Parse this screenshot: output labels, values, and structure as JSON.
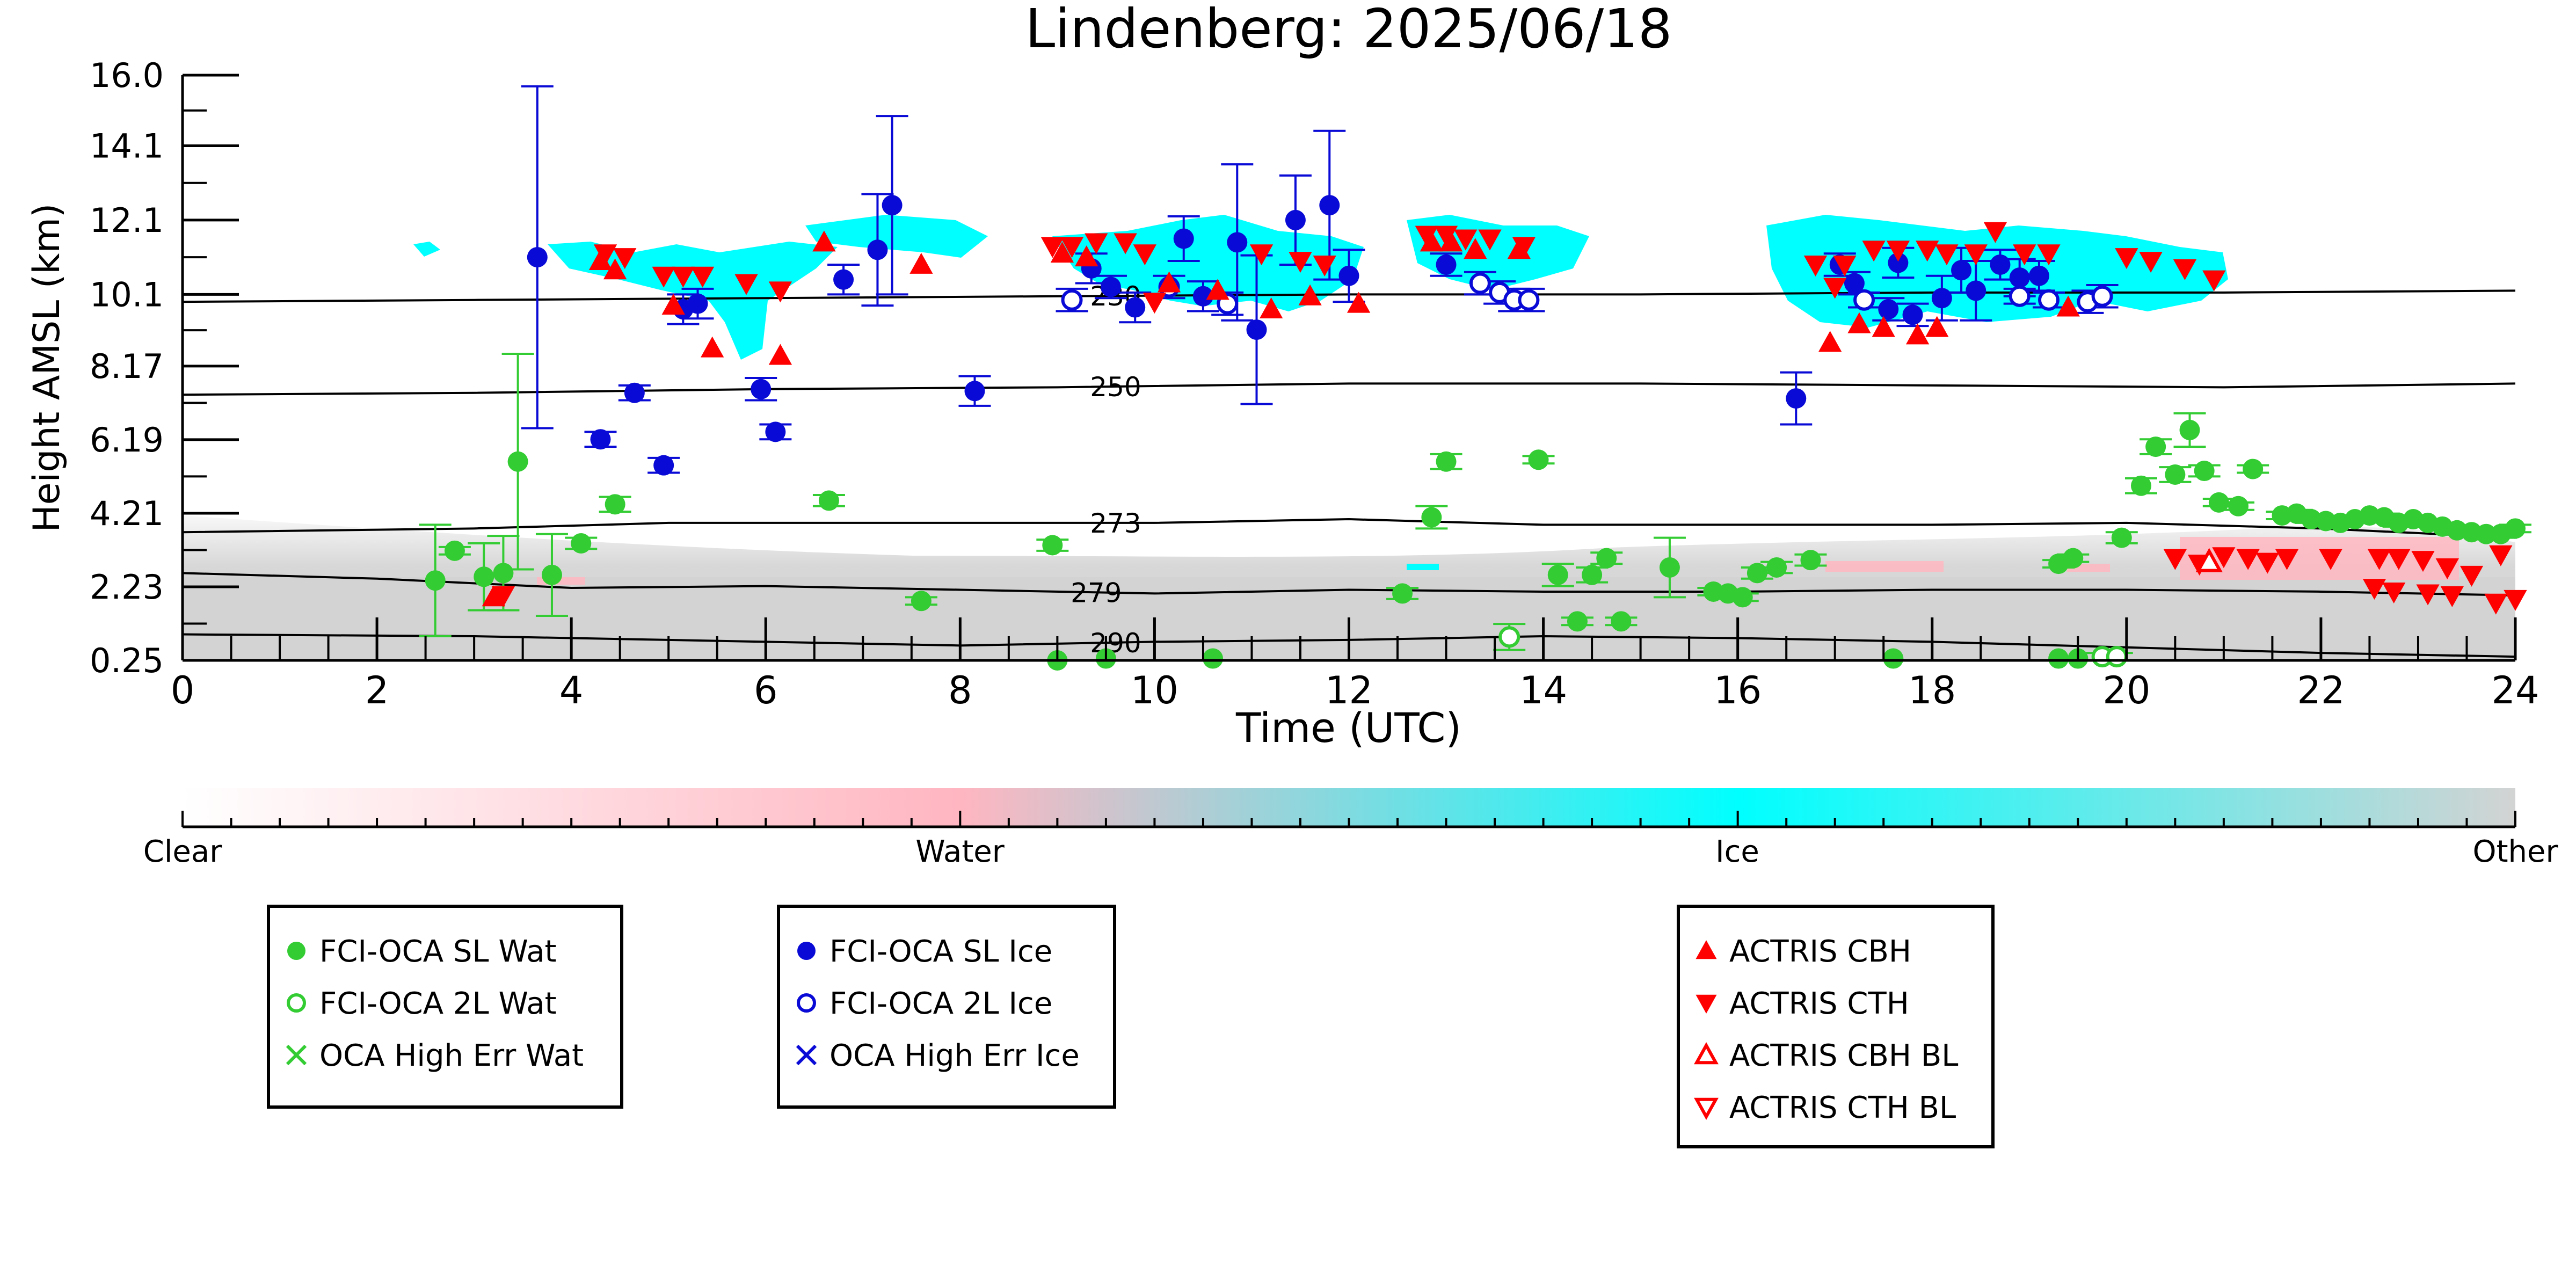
{
  "chart_data": {
    "type": "scatter",
    "title": "Lindenberg: 2025/06/18",
    "xlabel": "Time (UTC)",
    "ylabel": "Height AMSL (km)",
    "xlim": [
      0,
      24
    ],
    "ylim": [
      0.25,
      16.0
    ],
    "x_ticks": [
      "0",
      "2",
      "4",
      "6",
      "8",
      "10",
      "12",
      "14",
      "16",
      "18",
      "20",
      "22",
      "24"
    ],
    "y_ticks": [
      "0.25",
      "2.23",
      "4.21",
      "6.19",
      "8.17",
      "10.1",
      "12.1",
      "14.1",
      "16.0"
    ],
    "y_tick_values": [
      0.25,
      2.23,
      4.21,
      6.19,
      8.17,
      10.1,
      12.1,
      14.1,
      16.0
    ],
    "grid": false,
    "contours": [
      {
        "label": "230",
        "label_x": 9.6,
        "points": [
          [
            0,
            9.9
          ],
          [
            3,
            9.95
          ],
          [
            6,
            10.0
          ],
          [
            9,
            10.05
          ],
          [
            12,
            10.1
          ],
          [
            15,
            10.1
          ],
          [
            18,
            10.15
          ],
          [
            21,
            10.15
          ],
          [
            24,
            10.2
          ]
        ]
      },
      {
        "label": "250",
        "label_x": 9.6,
        "points": [
          [
            0,
            7.4
          ],
          [
            3,
            7.45
          ],
          [
            6,
            7.55
          ],
          [
            9,
            7.6
          ],
          [
            12,
            7.7
          ],
          [
            15,
            7.7
          ],
          [
            18,
            7.65
          ],
          [
            21,
            7.6
          ],
          [
            24,
            7.7
          ]
        ]
      },
      {
        "label": "273",
        "label_x": 9.6,
        "points": [
          [
            0,
            3.7
          ],
          [
            3,
            3.8
          ],
          [
            5,
            3.95
          ],
          [
            8,
            3.95
          ],
          [
            10,
            3.95
          ],
          [
            12,
            4.05
          ],
          [
            14,
            3.9
          ],
          [
            16,
            3.9
          ],
          [
            18,
            3.9
          ],
          [
            20,
            3.95
          ],
          [
            22,
            3.8
          ],
          [
            24,
            3.55
          ]
        ]
      },
      {
        "label": "279",
        "label_x": 9.4,
        "points": [
          [
            0,
            2.6
          ],
          [
            2,
            2.45
          ],
          [
            4,
            2.2
          ],
          [
            6,
            2.25
          ],
          [
            8,
            2.15
          ],
          [
            10,
            2.05
          ],
          [
            12,
            2.15
          ],
          [
            14,
            2.1
          ],
          [
            16,
            2.1
          ],
          [
            18,
            2.15
          ],
          [
            20,
            2.15
          ],
          [
            22,
            2.1
          ],
          [
            24,
            2.0
          ]
        ]
      },
      {
        "label": "290",
        "label_x": 9.6,
        "points": [
          [
            0,
            0.95
          ],
          [
            3,
            0.9
          ],
          [
            6,
            0.75
          ],
          [
            8,
            0.65
          ],
          [
            10,
            0.75
          ],
          [
            12,
            0.8
          ],
          [
            14,
            0.9
          ],
          [
            16,
            0.85
          ],
          [
            18,
            0.75
          ],
          [
            20,
            0.6
          ],
          [
            22,
            0.45
          ],
          [
            24,
            0.35
          ]
        ]
      }
    ],
    "colorbar": {
      "labels": [
        "Clear",
        "Water",
        "Ice",
        "Other"
      ],
      "colors": [
        "#ffffff",
        "#ffb6c1",
        "#00ffff",
        "#d3d3d3"
      ]
    },
    "series": [
      {
        "name": "FCI-OCA SL Wat",
        "marker": "filled-circle",
        "color": "#33cc33",
        "points": [
          [
            2.6,
            2.4,
            1.5
          ],
          [
            2.8,
            3.2,
            0.1
          ],
          [
            3.1,
            2.5,
            0.9
          ],
          [
            3.3,
            2.6,
            1.0
          ],
          [
            3.45,
            5.6,
            2.9
          ],
          [
            3.8,
            2.55,
            1.1
          ],
          [
            4.1,
            3.4,
            0.15
          ],
          [
            4.45,
            4.45,
            0.2
          ],
          [
            6.65,
            4.55,
            0.15
          ],
          [
            7.6,
            1.85,
            0.1
          ],
          [
            8.95,
            3.35,
            0.15
          ],
          [
            12.55,
            2.05,
            0.15
          ],
          [
            12.85,
            4.1,
            0.3
          ],
          [
            13.0,
            5.6,
            0.2
          ],
          [
            13.95,
            5.65,
            0.1
          ],
          [
            14.15,
            2.55,
            0.3
          ],
          [
            14.35,
            1.3,
            0.1
          ],
          [
            14.5,
            2.55,
            0.2
          ],
          [
            14.65,
            3.0,
            0.15
          ],
          [
            14.8,
            1.3,
            0.1
          ],
          [
            15.3,
            2.75,
            0.8
          ],
          [
            15.75,
            2.1,
            0.1
          ],
          [
            15.9,
            2.05,
            0.1
          ],
          [
            16.05,
            1.95,
            0.1
          ],
          [
            16.2,
            2.6,
            0.15
          ],
          [
            16.4,
            2.75,
            0.15
          ],
          [
            16.75,
            2.95,
            0.15
          ],
          [
            19.3,
            2.85,
            0.1
          ],
          [
            19.45,
            3.0,
            0.1
          ],
          [
            19.95,
            3.55,
            0.15
          ],
          [
            20.15,
            4.95,
            0.2
          ],
          [
            20.3,
            6.0,
            0.2
          ],
          [
            20.5,
            5.25,
            0.2
          ],
          [
            20.65,
            6.45,
            0.45
          ],
          [
            20.8,
            5.35,
            0.15
          ],
          [
            20.95,
            4.5,
            0.1
          ],
          [
            21.15,
            4.4,
            0.1
          ],
          [
            21.3,
            5.4,
            0.1
          ],
          [
            21.6,
            4.15,
            0.1
          ],
          [
            21.75,
            4.2,
            0.1
          ],
          [
            21.9,
            4.05,
            0.1
          ],
          [
            22.05,
            4.0,
            0.1
          ],
          [
            22.2,
            3.95,
            0.1
          ],
          [
            22.35,
            4.05,
            0.1
          ],
          [
            22.5,
            4.15,
            0.1
          ],
          [
            22.65,
            4.1,
            0.1
          ],
          [
            22.8,
            3.95,
            0.1
          ],
          [
            22.95,
            4.05,
            0.1
          ],
          [
            23.1,
            3.95,
            0.1
          ],
          [
            23.25,
            3.85,
            0.1
          ],
          [
            23.4,
            3.75,
            0.1
          ],
          [
            23.55,
            3.7,
            0.1
          ],
          [
            23.7,
            3.65,
            0.1
          ],
          [
            23.85,
            3.65,
            0.1
          ],
          [
            24.0,
            3.8,
            0.1
          ],
          [
            9.0,
            0.25,
            0
          ],
          [
            9.5,
            0.3,
            0
          ],
          [
            10.6,
            0.3,
            0
          ],
          [
            17.6,
            0.3,
            0
          ],
          [
            19.3,
            0.3,
            0
          ],
          [
            19.5,
            0.3,
            0
          ]
        ]
      },
      {
        "name": "FCI-OCA 2L Wat",
        "marker": "open-circle",
        "color": "#33cc33",
        "points": [
          [
            13.65,
            0.88,
            0.35
          ],
          [
            19.75,
            0.35,
            0.1
          ],
          [
            19.9,
            0.35,
            0.1
          ]
        ]
      },
      {
        "name": "OCA High Err Wat",
        "marker": "x",
        "color": "#33cc33",
        "points": []
      },
      {
        "name": "FCI-OCA SL Ice",
        "marker": "filled-circle",
        "color": "#0a0ad6",
        "points": [
          [
            3.65,
            11.1,
            4.6
          ],
          [
            4.3,
            6.2,
            0.2
          ],
          [
            4.65,
            7.45,
            0.2
          ],
          [
            4.95,
            5.5,
            0.2
          ],
          [
            5.15,
            9.7,
            0.4
          ],
          [
            5.3,
            9.85,
            0.4
          ],
          [
            5.95,
            7.55,
            0.3
          ],
          [
            6.1,
            6.4,
            0.2
          ],
          [
            6.8,
            10.5,
            0.4
          ],
          [
            7.15,
            11.3,
            1.5
          ],
          [
            7.3,
            12.5,
            2.4
          ],
          [
            8.15,
            7.5,
            0.4
          ],
          [
            9.35,
            10.8,
            0.4
          ],
          [
            9.55,
            10.3,
            0.3
          ],
          [
            9.8,
            9.75,
            0.4
          ],
          [
            10.3,
            11.6,
            0.6
          ],
          [
            10.5,
            10.05,
            0.4
          ],
          [
            10.85,
            11.5,
            2.1
          ],
          [
            11.05,
            9.15,
            2.0
          ],
          [
            11.45,
            12.1,
            1.2
          ],
          [
            11.8,
            12.5,
            2.0
          ],
          [
            12.0,
            10.6,
            0.7
          ],
          [
            13.0,
            10.9,
            0.3
          ],
          [
            16.6,
            7.3,
            0.7
          ],
          [
            17.05,
            10.9,
            0.3
          ],
          [
            17.2,
            10.4,
            0.3
          ],
          [
            17.55,
            9.7,
            0.3
          ],
          [
            17.65,
            10.95,
            0.4
          ],
          [
            17.8,
            9.55,
            0.3
          ],
          [
            18.1,
            10.0,
            0.6
          ],
          [
            18.3,
            10.75,
            0.6
          ],
          [
            18.45,
            10.2,
            0.8
          ],
          [
            18.7,
            10.9,
            0.4
          ],
          [
            18.9,
            10.55,
            0.5
          ],
          [
            19.1,
            10.6,
            0.4
          ]
        ]
      },
      {
        "name": "FCI-OCA 2L Ice",
        "marker": "open-circle",
        "color": "#0a0ad6",
        "points": [
          [
            9.15,
            9.95,
            0.3
          ],
          [
            10.15,
            10.3,
            0.3
          ],
          [
            10.75,
            9.85,
            0.3
          ],
          [
            13.35,
            10.4,
            0.3
          ],
          [
            13.55,
            10.15,
            0.3
          ],
          [
            13.7,
            9.95,
            0.3
          ],
          [
            13.85,
            9.95,
            0.3
          ],
          [
            17.3,
            9.95,
            0.2
          ],
          [
            18.9,
            10.05,
            0.2
          ],
          [
            19.2,
            9.95,
            0.2
          ],
          [
            19.6,
            9.9,
            0.3
          ],
          [
            19.75,
            10.05,
            0.3
          ]
        ]
      },
      {
        "name": "OCA High Err Ice",
        "marker": "x",
        "color": "#0a0ad6",
        "points": []
      },
      {
        "name": "ACTRIS CBH",
        "marker": "triangle-up",
        "color": "#ff0000",
        "points": [
          [
            4.3,
            11.0
          ],
          [
            4.45,
            10.75
          ],
          [
            5.05,
            9.8
          ],
          [
            5.45,
            8.65
          ],
          [
            6.15,
            8.45
          ],
          [
            6.6,
            11.5
          ],
          [
            7.6,
            10.9
          ],
          [
            9.05,
            11.2
          ],
          [
            9.3,
            11.1
          ],
          [
            10.15,
            10.4
          ],
          [
            10.65,
            10.2
          ],
          [
            11.2,
            9.7
          ],
          [
            11.6,
            10.05
          ],
          [
            12.1,
            9.85
          ],
          [
            12.85,
            11.5
          ],
          [
            13.05,
            11.5
          ],
          [
            13.3,
            11.3
          ],
          [
            13.75,
            11.3
          ],
          [
            16.95,
            8.8
          ],
          [
            17.25,
            9.3
          ],
          [
            17.5,
            9.2
          ],
          [
            17.85,
            9.0
          ],
          [
            18.05,
            9.2
          ],
          [
            19.4,
            9.75
          ],
          [
            3.2,
            1.95
          ]
        ]
      },
      {
        "name": "ACTRIS CTH",
        "marker": "triangle-down",
        "color": "#ff0000",
        "points": [
          [
            4.35,
            11.2
          ],
          [
            4.55,
            11.1
          ],
          [
            4.95,
            10.6
          ],
          [
            5.15,
            10.6
          ],
          [
            5.35,
            10.6
          ],
          [
            5.8,
            10.4
          ],
          [
            6.15,
            10.2
          ],
          [
            8.95,
            11.4
          ],
          [
            9.15,
            11.4
          ],
          [
            9.4,
            11.5
          ],
          [
            9.7,
            11.5
          ],
          [
            9.9,
            11.2
          ],
          [
            11.1,
            11.2
          ],
          [
            11.5,
            11.0
          ],
          [
            11.75,
            10.9
          ],
          [
            12.8,
            11.7
          ],
          [
            13.0,
            11.7
          ],
          [
            13.2,
            11.6
          ],
          [
            13.45,
            11.6
          ],
          [
            13.8,
            11.4
          ],
          [
            16.8,
            10.9
          ],
          [
            17.1,
            10.9
          ],
          [
            17.4,
            11.3
          ],
          [
            17.65,
            11.3
          ],
          [
            17.95,
            11.3
          ],
          [
            18.15,
            11.2
          ],
          [
            18.45,
            11.2
          ],
          [
            18.65,
            11.8
          ],
          [
            18.95,
            11.2
          ],
          [
            19.2,
            11.2
          ],
          [
            20.0,
            11.1
          ],
          [
            20.25,
            11.0
          ],
          [
            20.6,
            10.8
          ],
          [
            20.9,
            10.5
          ],
          [
            20.5,
            3.0
          ],
          [
            20.75,
            2.85
          ],
          [
            21.0,
            3.05
          ],
          [
            21.25,
            3.0
          ],
          [
            21.45,
            2.9
          ],
          [
            21.65,
            3.0
          ],
          [
            22.1,
            3.0
          ],
          [
            22.6,
            3.0
          ],
          [
            22.8,
            3.0
          ],
          [
            23.05,
            2.95
          ],
          [
            23.3,
            2.75
          ],
          [
            23.55,
            2.55
          ],
          [
            23.85,
            3.1
          ],
          [
            22.55,
            2.2
          ],
          [
            22.75,
            2.1
          ],
          [
            23.1,
            2.05
          ],
          [
            23.35,
            2.0
          ],
          [
            23.8,
            1.8
          ],
          [
            24.0,
            1.9
          ],
          [
            3.3,
            2.0
          ],
          [
            10.0,
            9.9
          ],
          [
            17.0,
            10.3
          ]
        ]
      },
      {
        "name": "ACTRIS CBH BL",
        "marker": "open-triangle-up",
        "color": "#ff0000",
        "points": [
          [
            20.85,
            2.9
          ]
        ]
      },
      {
        "name": "ACTRIS CTH BL",
        "marker": "open-triangle-down",
        "color": "#ff0000",
        "points": []
      }
    ],
    "legend_groups": [
      [
        "FCI-OCA SL Wat",
        "FCI-OCA 2L Wat",
        "OCA High Err Wat"
      ],
      [
        "FCI-OCA SL Ice",
        "FCI-OCA 2L Ice",
        "OCA High Err Ice"
      ],
      [
        "ACTRIS CBH",
        "ACTRIS CTH",
        "ACTRIS CBH BL",
        "ACTRIS CTH BL"
      ]
    ],
    "legend_placement": "bottom"
  }
}
